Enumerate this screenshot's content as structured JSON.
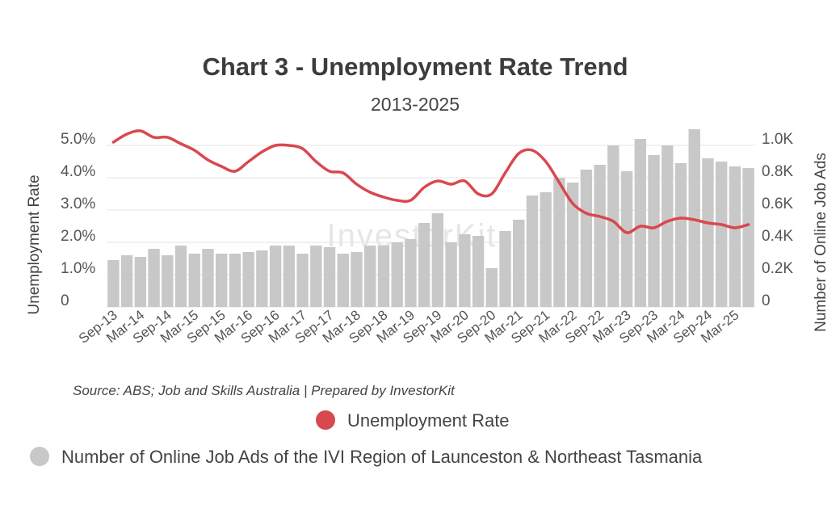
{
  "chart_data": {
    "type": "bar",
    "title": "Chart 3 - Unemployment Rate Trend",
    "subtitle": "2013-2025",
    "ylabel": "Unemployment Rate",
    "y2label": "Number of Online Job Ads",
    "ylim": [
      0,
      5.5
    ],
    "y2lim": [
      0,
      1100
    ],
    "y_ticks": [
      "0",
      "1.0%",
      "2.0%",
      "3.0%",
      "4.0%",
      "5.0%"
    ],
    "y2_ticks": [
      "0",
      "0.2K",
      "0.4K",
      "0.6K",
      "0.8K",
      "1.0K"
    ],
    "x_tick_labels": [
      "Sep-13",
      "Mar-14",
      "Sep-14",
      "Mar-15",
      "Sep-15",
      "Mar-16",
      "Sep-16",
      "Mar-17",
      "Sep-17",
      "Mar-18",
      "Sep-18",
      "Mar-19",
      "Sep-19",
      "Mar-20",
      "Sep-20",
      "Mar-21",
      "Sep-21",
      "Mar-22",
      "Sep-22",
      "Mar-23",
      "Sep-23",
      "Mar-24",
      "Sep-24",
      "Mar-25"
    ],
    "source": "Source: ABS; Job and Skills Australia | Prepared by InvestorKit",
    "watermark": "InvestorKit",
    "series": [
      {
        "name": "Number of Online Job Ads of the IVI Region of Launceston & Northeast Tasmania",
        "kind": "bar",
        "axis": "right",
        "color": "#c8c8c8",
        "values": [
          290,
          320,
          310,
          360,
          320,
          380,
          330,
          360,
          330,
          330,
          340,
          350,
          380,
          380,
          330,
          380,
          370,
          330,
          340,
          380,
          380,
          400,
          420,
          520,
          580,
          400,
          450,
          440,
          240,
          470,
          540,
          690,
          710,
          800,
          770,
          850,
          880,
          1000,
          840,
          1040,
          940,
          1000,
          890,
          1100,
          920,
          900,
          870,
          860
        ]
      },
      {
        "name": "Unemployment Rate",
        "kind": "line",
        "axis": "left",
        "color": "#d9484f",
        "values": [
          5.1,
          5.35,
          5.45,
          5.25,
          5.25,
          5.05,
          4.85,
          4.55,
          4.35,
          4.2,
          4.5,
          4.8,
          5.0,
          5.0,
          4.9,
          4.5,
          4.2,
          4.15,
          3.8,
          3.55,
          3.4,
          3.3,
          3.3,
          3.7,
          3.9,
          3.8,
          3.9,
          3.5,
          3.5,
          4.15,
          4.75,
          4.85,
          4.5,
          3.85,
          3.2,
          2.9,
          2.8,
          2.65,
          2.3,
          2.5,
          2.45,
          2.65,
          2.75,
          2.7,
          2.6,
          2.55,
          2.45,
          2.55
        ]
      }
    ],
    "legend": [
      {
        "label": "Unemployment Rate",
        "color": "#d9484f"
      },
      {
        "label": "Number of Online Job Ads of the IVI Region of Launceston & Northeast Tasmania",
        "color": "#c8c8c8"
      }
    ]
  }
}
